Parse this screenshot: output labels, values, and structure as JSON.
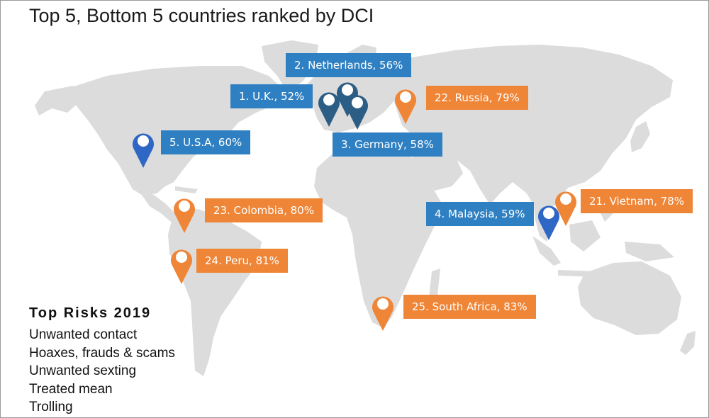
{
  "title": "Top 5, Bottom 5 countries ranked by DCI",
  "colors": {
    "top_label": "#2f80c2",
    "top_pin_dark": "#2c5d85",
    "top_pin_blue": "#2f67c4",
    "bottom": "#ef8536",
    "land": "#dcdcdc"
  },
  "markers": [
    {
      "id": "netherlands",
      "rank": 2,
      "label": "2. Netherlands, 56%",
      "group": "top"
    },
    {
      "id": "uk",
      "rank": 1,
      "label": "1. U.K., 52%",
      "group": "top"
    },
    {
      "id": "germany",
      "rank": 3,
      "label": "3. Germany, 58%",
      "group": "top"
    },
    {
      "id": "usa",
      "rank": 5,
      "label": "5. U.S.A, 60%",
      "group": "top"
    },
    {
      "id": "malaysia",
      "rank": 4,
      "label": "4. Malaysia, 59%",
      "group": "top"
    },
    {
      "id": "russia",
      "rank": 22,
      "label": "22. Russia, 79%",
      "group": "bottom"
    },
    {
      "id": "vietnam",
      "rank": 21,
      "label": "21. Vietnam, 78%",
      "group": "bottom"
    },
    {
      "id": "colombia",
      "rank": 23,
      "label": "23. Colombia, 80%",
      "group": "bottom"
    },
    {
      "id": "peru",
      "rank": 24,
      "label": "24. Peru, 81%",
      "group": "bottom"
    },
    {
      "id": "south_africa",
      "rank": 25,
      "label": "25. South Africa, 83%",
      "group": "bottom"
    }
  ],
  "risks": {
    "title": "Top Risks 2019",
    "items": [
      "Unwanted contact",
      "Hoaxes, frauds & scams",
      "Unwanted sexting",
      "Treated mean",
      "Trolling"
    ]
  }
}
